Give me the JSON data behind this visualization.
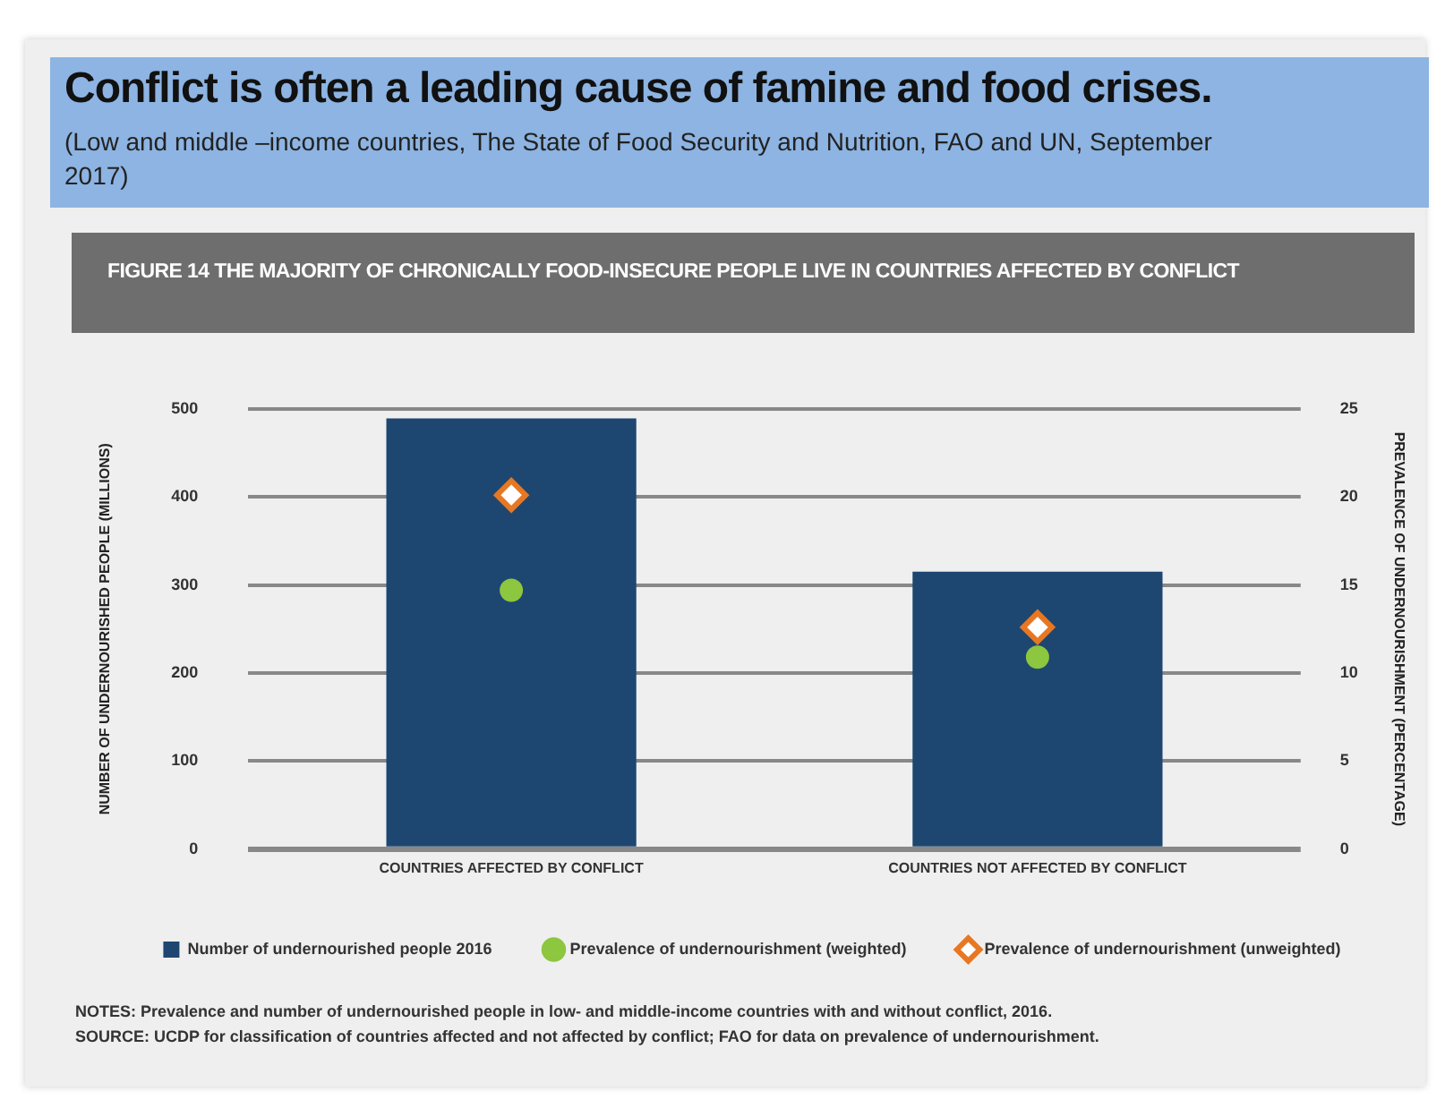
{
  "chart_data": {
    "type": "bar",
    "title": "Conflict is often a leading cause of famine and food crises.",
    "subtitle": "(Low and middle –income countries, The State of Food Security and Nutrition, FAO and UN, September 2017)",
    "annotations": [
      "FIGURE 14 THE MAJORITY OF CHRONICALLY FOOD-INSECURE PEOPLE LIVE IN COUNTRIES AFFECTED BY CONFLICT",
      "NOTES: Prevalence and number of undernourished people in low- and middle-income countries with and without conflict, 2016.",
      "SOURCE: UCDP for classification of countries affected and not affected by conflict; FAO for data on prevalence of undernourishment."
    ],
    "categories": [
      "COUNTRIES AFFECTED BY CONFLICT",
      "COUNTRIES NOT AFFECTED BY CONFLICT"
    ],
    "ylabel": "NUMBER OF UNDERNOURISHED PEOPLE (MILLIONS)",
    "y2label": "PREVALENCE OF UNDERNOURISHMENT (PERCENTAGE)",
    "ylim": [
      0,
      500
    ],
    "yticks": [
      0,
      100,
      200,
      300,
      400,
      500
    ],
    "y2lim": [
      0,
      25
    ],
    "y2ticks": [
      0,
      5,
      10,
      15,
      20,
      25
    ],
    "grid": "y",
    "legend": "bottom",
    "series": [
      {
        "name": "Number of undernourished people 2016",
        "color": "#1d4771",
        "values": [
          489,
          315
        ]
      },
      {
        "name": "Prevalence of undernourishment (weighted)",
        "type": "scatter",
        "axis": "y2",
        "marker": "circle",
        "color": "#8dc63f",
        "x": [
          "COUNTRIES AFFECTED BY CONFLICT",
          "COUNTRIES NOT AFFECTED BY CONFLICT"
        ],
        "values": [
          14.7,
          10.9
        ]
      },
      {
        "name": "Prevalence of undernourishment (unweighted)",
        "type": "scatter",
        "axis": "y2",
        "marker": "diamond",
        "color": "#e87722",
        "x": [
          "COUNTRIES AFFECTED BY CONFLICT",
          "COUNTRIES NOT AFFECTED BY CONFLICT"
        ],
        "values": [
          20.1,
          12.6
        ]
      }
    ]
  }
}
